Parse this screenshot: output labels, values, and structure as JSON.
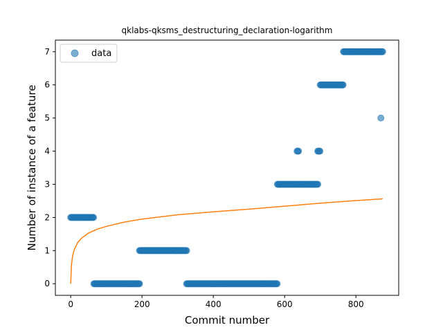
{
  "chart_data": {
    "type": "scatter",
    "title": "qklabs-qksms_destructuring_declaration-logarithm",
    "xlabel": "Commit number",
    "ylabel": "Number of instance of a feature",
    "xlim": [
      -43,
      920
    ],
    "ylim": [
      -0.35,
      7.35
    ],
    "xticks": [
      0,
      200,
      400,
      600,
      800
    ],
    "yticks": [
      0,
      1,
      2,
      3,
      4,
      5,
      6,
      7
    ],
    "grid": false,
    "legend": {
      "placement": "upper-left",
      "entries": [
        "data"
      ]
    },
    "colors": {
      "data": "#1f77b4",
      "fit": "#ff7f0e"
    },
    "series": [
      {
        "name": "data",
        "type": "scatter",
        "segments": [
          {
            "x_start": 0,
            "x_end": 65,
            "y": 2
          },
          {
            "x_start": 65,
            "x_end": 193,
            "y": 0
          },
          {
            "x_start": 193,
            "x_end": 325,
            "y": 1
          },
          {
            "x_start": 325,
            "x_end": 580,
            "y": 0
          },
          {
            "x_start": 580,
            "x_end": 640,
            "y": 3
          },
          {
            "x_start": 643,
            "x_end": 693,
            "y": 3
          },
          {
            "x_start": 635,
            "x_end": 640,
            "y": 4
          },
          {
            "x_start": 693,
            "x_end": 700,
            "y": 4
          },
          {
            "x_start": 700,
            "x_end": 765,
            "y": 6
          },
          {
            "x_start": 765,
            "x_end": 875,
            "y": 7
          }
        ],
        "extra_points": [
          {
            "x": 870,
            "y": 5
          }
        ]
      },
      {
        "name": "",
        "type": "line",
        "points": [
          [
            0,
            0.0
          ],
          [
            2,
            0.55
          ],
          [
            5,
            0.82
          ],
          [
            10,
            1.03
          ],
          [
            20,
            1.25
          ],
          [
            30,
            1.37
          ],
          [
            50,
            1.53
          ],
          [
            75,
            1.65
          ],
          [
            100,
            1.73
          ],
          [
            150,
            1.86
          ],
          [
            200,
            1.95
          ],
          [
            300,
            2.08
          ],
          [
            400,
            2.17
          ],
          [
            500,
            2.25
          ],
          [
            600,
            2.34
          ],
          [
            700,
            2.43
          ],
          [
            800,
            2.51
          ],
          [
            875,
            2.56
          ]
        ]
      }
    ]
  }
}
